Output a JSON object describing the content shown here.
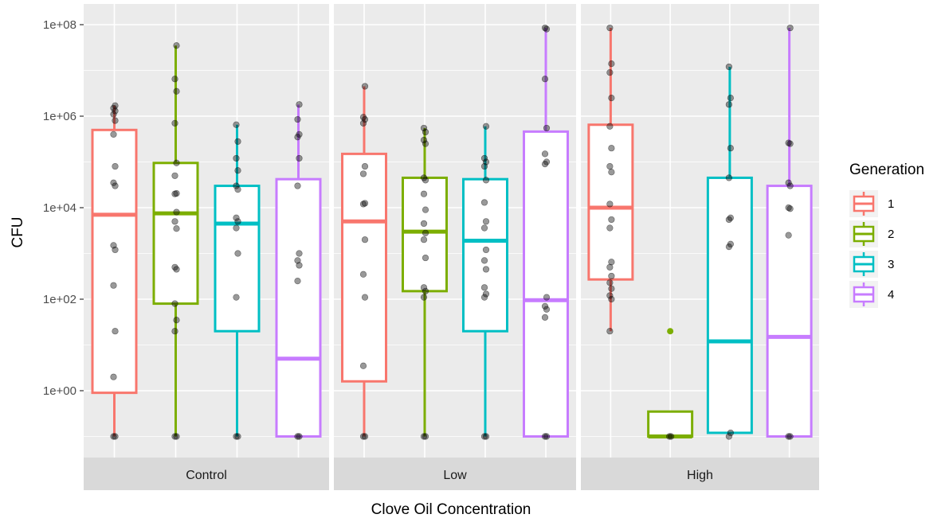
{
  "chart_data": {
    "type": "boxplot",
    "xlabel": "Clove Oil Concentration",
    "ylabel": "CFU",
    "y_scale": "log10",
    "ylim": [
      0.04,
      150000000
    ],
    "y_ticks": [
      1,
      100,
      10000,
      1000000,
      100000000
    ],
    "y_tick_labels": [
      "1e+00",
      "1e+02",
      "1e+04",
      "1e+06",
      "1e+08"
    ],
    "facets": [
      "Control",
      "Low",
      "High"
    ],
    "legend": {
      "title": "Generation",
      "position": "right",
      "entries": [
        "1",
        "2",
        "3",
        "4"
      ]
    },
    "colors": {
      "1": "#F8766D",
      "2": "#7CAE00",
      "3": "#00BFC4",
      "4": "#C77CFF"
    },
    "grid": true,
    "boxes": [
      {
        "facet": "Control",
        "generation": "1",
        "lower_whisker": 0.1,
        "q1": 0.9,
        "median": 7000,
        "q3": 500000,
        "upper_whisker": 1700000,
        "points": [
          0.1,
          0.1,
          2,
          20,
          200,
          1200,
          1500,
          30000,
          35000,
          80000,
          400000,
          800000,
          1100000,
          1300000,
          1500000,
          1700000
        ]
      },
      {
        "facet": "Control",
        "generation": "2",
        "lower_whisker": 0.1,
        "q1": 80,
        "median": 7500,
        "q3": 95000,
        "upper_whisker": 35000000,
        "points": [
          0.1,
          0.1,
          20,
          35,
          80,
          450,
          500,
          3500,
          5000,
          8000,
          20000,
          20500,
          50000,
          95000,
          700000,
          3500000,
          6500000,
          35000000
        ]
      },
      {
        "facet": "Control",
        "generation": "3",
        "lower_whisker": 0.1,
        "q1": 20,
        "median": 4500,
        "q3": 30000,
        "upper_whisker": 650000,
        "points": [
          0.1,
          0.1,
          110,
          1000,
          3600,
          5000,
          6000,
          25000,
          30000,
          65000,
          120000,
          280000,
          650000
        ]
      },
      {
        "facet": "Control",
        "generation": "4",
        "lower_whisker": 0.1,
        "q1": 0.1,
        "median": 5,
        "q3": 42000,
        "upper_whisker": 1800000,
        "points": [
          0.1,
          0.1,
          250,
          550,
          700,
          1000,
          30000,
          120000,
          350000,
          400000,
          850000,
          1800000
        ]
      },
      {
        "facet": "Low",
        "generation": "1",
        "lower_whisker": 0.1,
        "q1": 1.6,
        "median": 5000,
        "q3": 150000,
        "upper_whisker": 4500000,
        "points": [
          0.1,
          0.1,
          3.5,
          110,
          350,
          2000,
          12000,
          12500,
          55000,
          80000,
          700000,
          850000,
          950000,
          4500000
        ]
      },
      {
        "facet": "Low",
        "generation": "2",
        "lower_whisker": 0.1,
        "q1": 150,
        "median": 3000,
        "q3": 45000,
        "upper_whisker": 550000,
        "points": [
          0.1,
          0.1,
          110,
          150,
          180,
          800,
          2000,
          2800,
          4500,
          9000,
          20000,
          40000,
          45000,
          250000,
          300000,
          450000,
          550000
        ]
      },
      {
        "facet": "Low",
        "generation": "3",
        "lower_whisker": 0.1,
        "q1": 20,
        "median": 1900,
        "q3": 42000,
        "upper_whisker": 600000,
        "points": [
          0.1,
          0.1,
          110,
          130,
          180,
          450,
          700,
          1200,
          3600,
          5000,
          13000,
          40000,
          80000,
          100000,
          120000,
          600000
        ]
      },
      {
        "facet": "Low",
        "generation": "4",
        "lower_whisker": 0.1,
        "q1": 0.1,
        "median": 95,
        "q3": 460000,
        "upper_whisker": 85000000,
        "points": [
          0.1,
          0.1,
          40,
          60,
          70,
          110,
          90000,
          100000,
          150000,
          550000,
          6500000,
          80000000,
          85000000
        ]
      },
      {
        "facet": "High",
        "generation": "1",
        "lower_whisker": 20,
        "q1": 270,
        "median": 10000,
        "q3": 650000,
        "upper_whisker": 85000000,
        "points": [
          20,
          100,
          120,
          170,
          230,
          320,
          500,
          650,
          3600,
          5500,
          12000,
          60000,
          80000,
          200000,
          600000,
          2500000,
          9000000,
          14000000,
          85000000
        ]
      },
      {
        "facet": "High",
        "generation": "2",
        "lower_whisker": 0.1,
        "q1": 0.1,
        "median": 0.1,
        "q3": 0.35,
        "upper_whisker": 0.35,
        "points": [
          0.1,
          0.1
        ],
        "outliers": [
          20
        ]
      },
      {
        "facet": "High",
        "generation": "3",
        "lower_whisker": 0.12,
        "q1": 0.12,
        "median": 12,
        "q3": 45000,
        "upper_whisker": 12000000,
        "points": [
          0.1,
          0.12,
          1400,
          1600,
          5500,
          6000,
          45000,
          200000,
          1800000,
          2500000,
          12000000
        ]
      },
      {
        "facet": "High",
        "generation": "4",
        "lower_whisker": 0.1,
        "q1": 0.1,
        "median": 15,
        "q3": 30000,
        "upper_whisker": 85000000,
        "points": [
          0.1,
          0.1,
          2500,
          9500,
          10000,
          30000,
          35000,
          250000,
          260000,
          85000000
        ]
      }
    ]
  }
}
